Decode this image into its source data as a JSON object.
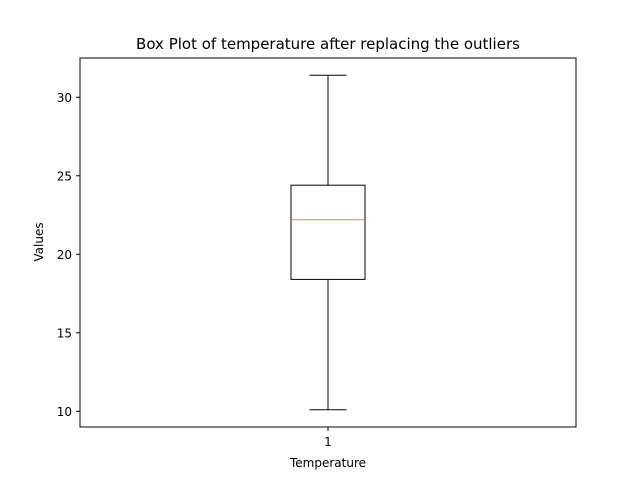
{
  "chart_data": {
    "type": "box",
    "title": "Box Plot of temperature after replacing the outliers",
    "xlabel": "Temperature",
    "ylabel": "Values",
    "categories": [
      "1"
    ],
    "ylim": [
      9.0,
      32.5
    ],
    "yticks": [
      10,
      15,
      20,
      25,
      30
    ],
    "boxes": [
      {
        "category": "1",
        "whisker_low": 10.1,
        "q1": 18.4,
        "median": 22.2,
        "q3": 24.4,
        "whisker_high": 31.4
      }
    ],
    "grid": false,
    "colors": {
      "box": "#000000",
      "median": "#ff7f0e"
    }
  }
}
